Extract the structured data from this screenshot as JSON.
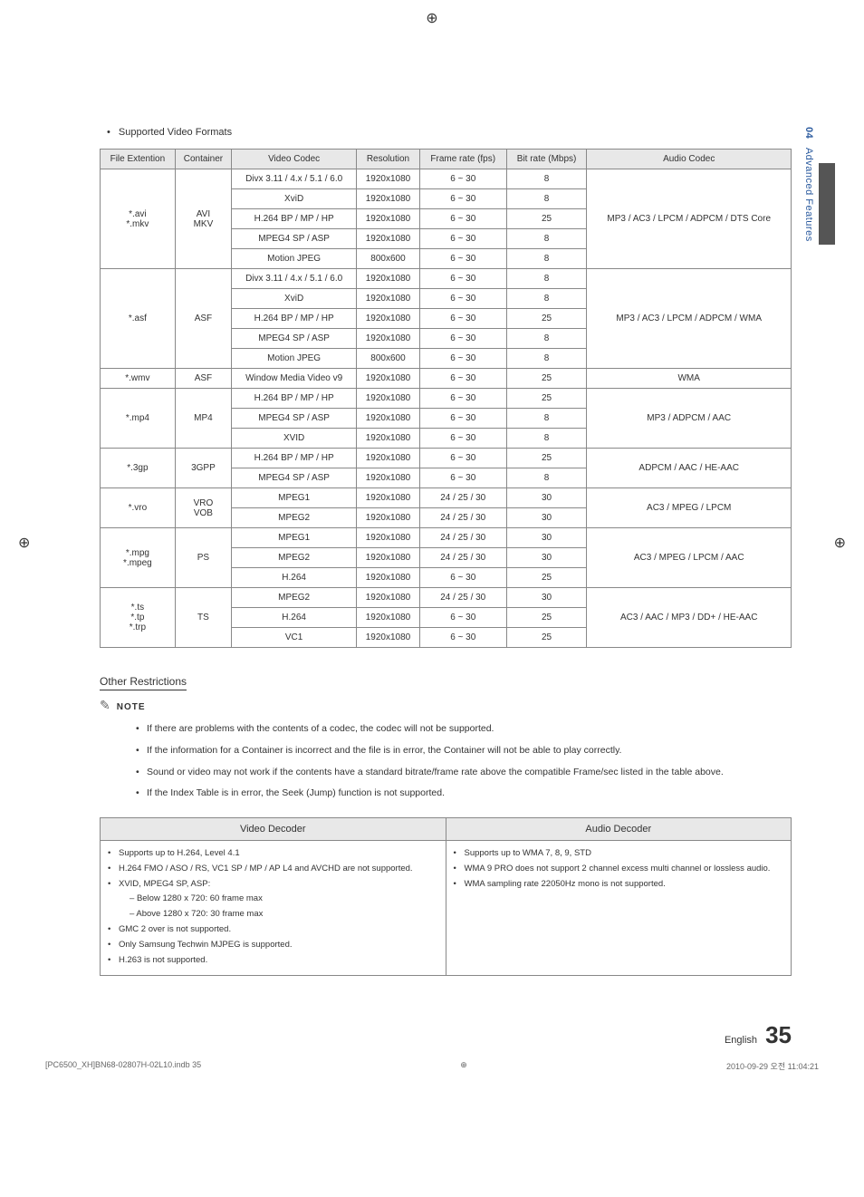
{
  "sideTab": {
    "chapterNum": "04",
    "chapterTitle": "Advanced Features"
  },
  "heading": "Supported Video Formats",
  "fmtTable": {
    "headers": [
      "File Extention",
      "Container",
      "Video Codec",
      "Resolution",
      "Frame rate (fps)",
      "Bit rate (Mbps)",
      "Audio Codec"
    ],
    "groups": [
      {
        "ext": "*.avi\n*.mkv",
        "container": "AVI\nMKV",
        "audio": "MP3 / AC3 / LPCM / ADPCM / DTS Core",
        "rows": [
          [
            "Divx 3.11 / 4.x / 5.1 / 6.0",
            "1920x1080",
            "6 ~ 30",
            "8"
          ],
          [
            "XviD",
            "1920x1080",
            "6 ~ 30",
            "8"
          ],
          [
            "H.264 BP / MP / HP",
            "1920x1080",
            "6 ~ 30",
            "25"
          ],
          [
            "MPEG4 SP / ASP",
            "1920x1080",
            "6 ~ 30",
            "8"
          ],
          [
            "Motion JPEG",
            "800x600",
            "6 ~ 30",
            "8"
          ]
        ]
      },
      {
        "ext": "*.asf",
        "container": "ASF",
        "audio": "MP3 / AC3 / LPCM / ADPCM / WMA",
        "rows": [
          [
            "Divx 3.11 / 4.x / 5.1 / 6.0",
            "1920x1080",
            "6 ~ 30",
            "8"
          ],
          [
            "XviD",
            "1920x1080",
            "6 ~ 30",
            "8"
          ],
          [
            "H.264 BP / MP / HP",
            "1920x1080",
            "6 ~ 30",
            "25"
          ],
          [
            "MPEG4 SP / ASP",
            "1920x1080",
            "6 ~ 30",
            "8"
          ],
          [
            "Motion JPEG",
            "800x600",
            "6 ~ 30",
            "8"
          ]
        ]
      },
      {
        "ext": "*.wmv",
        "container": "ASF",
        "audio": "WMA",
        "rows": [
          [
            "Window Media Video v9",
            "1920x1080",
            "6 ~ 30",
            "25"
          ]
        ]
      },
      {
        "ext": "*.mp4",
        "container": "MP4",
        "audio": "MP3 / ADPCM / AAC",
        "rows": [
          [
            "H.264 BP / MP / HP",
            "1920x1080",
            "6 ~ 30",
            "25"
          ],
          [
            "MPEG4 SP / ASP",
            "1920x1080",
            "6 ~ 30",
            "8"
          ],
          [
            "XVID",
            "1920x1080",
            "6 ~ 30",
            "8"
          ]
        ]
      },
      {
        "ext": "*.3gp",
        "container": "3GPP",
        "audio": "ADPCM / AAC / HE-AAC",
        "rows": [
          [
            "H.264 BP / MP / HP",
            "1920x1080",
            "6 ~ 30",
            "25"
          ],
          [
            "MPEG4 SP / ASP",
            "1920x1080",
            "6 ~ 30",
            "8"
          ]
        ]
      },
      {
        "ext": "*.vro",
        "container": "VRO\nVOB",
        "audio": "AC3 / MPEG / LPCM",
        "rows": [
          [
            "MPEG1",
            "1920x1080",
            "24 / 25 / 30",
            "30"
          ],
          [
            "MPEG2",
            "1920x1080",
            "24 / 25 / 30",
            "30"
          ]
        ]
      },
      {
        "ext": "*.mpg\n*.mpeg",
        "container": "PS",
        "audio": "AC3 / MPEG / LPCM / AAC",
        "rows": [
          [
            "MPEG1",
            "1920x1080",
            "24 / 25 / 30",
            "30"
          ],
          [
            "MPEG2",
            "1920x1080",
            "24 / 25 / 30",
            "30"
          ],
          [
            "H.264",
            "1920x1080",
            "6 ~ 30",
            "25"
          ]
        ]
      },
      {
        "ext": "*.ts\n*.tp\n*.trp",
        "container": "TS",
        "audio": "AC3 / AAC / MP3 / DD+ / HE-AAC",
        "rows": [
          [
            "MPEG2",
            "1920x1080",
            "24 / 25 / 30",
            "30"
          ],
          [
            "H.264",
            "1920x1080",
            "6 ~ 30",
            "25"
          ],
          [
            "VC1",
            "1920x1080",
            "6 ~ 30",
            "25"
          ]
        ]
      }
    ]
  },
  "restrictionsTitle": "Other Restrictions",
  "noteLabel": "NOTE",
  "notes": [
    "If there are problems with the contents of a codec, the codec will not be supported.",
    "If the information for a Container is incorrect and the file is in error, the Container will not be able to play correctly.",
    "Sound or video may not work if the contents have a standard bitrate/frame rate above the compatible Frame/sec listed in the table above.",
    "If the Index Table is in error, the Seek (Jump) function is not supported."
  ],
  "decTable": {
    "headers": [
      "Video Decoder",
      "Audio Decoder"
    ],
    "video": {
      "bullets": [
        "Supports up to H.264, Level 4.1",
        "H.264 FMO / ASO / RS, VC1 SP / MP / AP L4 and AVCHD are not supported.",
        {
          "text": "XVID, MPEG4 SP, ASP:",
          "sub": [
            "Below 1280 x 720: 60 frame max",
            "Above 1280 x 720: 30 frame max"
          ]
        },
        "GMC 2 over is not supported.",
        "Only Samsung Techwin MJPEG is supported.",
        "H.263 is not supported."
      ]
    },
    "audio": {
      "bullets": [
        "Supports up to WMA 7, 8, 9, STD",
        "WMA 9 PRO does not support 2 channel excess multi channel or lossless audio.",
        "WMA sampling rate 22050Hz mono is not supported."
      ]
    }
  },
  "footer": {
    "lang": "English",
    "page": "35"
  },
  "printFooter": {
    "left": "[PC6500_XH]BN68-02807H-02L10.indb   35",
    "right": "2010-09-29   오전 11:04:21"
  }
}
